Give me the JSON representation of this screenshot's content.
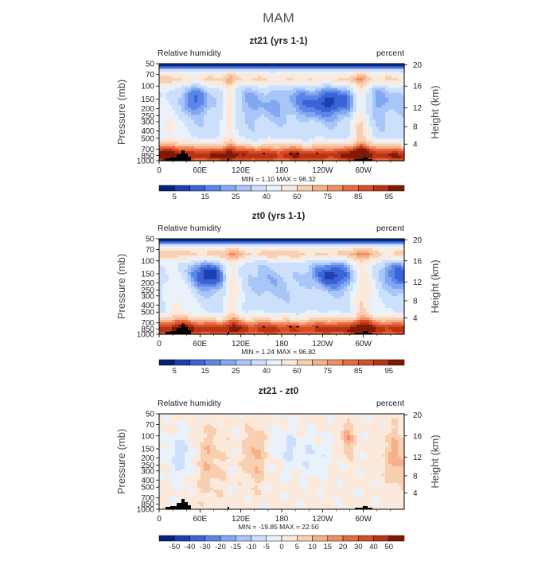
{
  "main_title": "MAM",
  "chart_data": [
    {
      "type": "heatmap",
      "title": "zt21 (yrs 1-1)",
      "variable": "Relative humidity",
      "units": "percent",
      "ylabel": "Pressure (mb)",
      "ylabel_right": "Height (km)",
      "x_ticks": [
        "0",
        "60E",
        "120E",
        "180",
        "120W",
        "60W"
      ],
      "y_ticks": [
        "1000",
        "850",
        "700",
        "500",
        "400",
        "300",
        "250",
        "200",
        "150",
        "100",
        "70",
        "50"
      ],
      "height_ticks": [
        "20",
        "16",
        "12",
        "8",
        "4"
      ],
      "stats": "MIN =     1.10   MAX =   98.32",
      "colorbar_labels": [
        "5",
        "15",
        "25",
        "40",
        "60",
        "75",
        "85",
        "95"
      ],
      "colors": [
        "#08207d",
        "#1d3fb0",
        "#3a63d6",
        "#5b86e8",
        "#82a8f2",
        "#a9c6f8",
        "#cde0fb",
        "#e9f1fb",
        "#fbe9dc",
        "#f9cfb2",
        "#f6b08a",
        "#f08e63",
        "#e76a41",
        "#d64e27",
        "#b93414",
        "#7f1b05"
      ]
    },
    {
      "type": "heatmap",
      "title": "zt0 (yrs 1-1)",
      "variable": "Relative humidity",
      "units": "percent",
      "ylabel": "Pressure (mb)",
      "ylabel_right": "Height (km)",
      "x_ticks": [
        "0",
        "60E",
        "120E",
        "180",
        "120W",
        "60W"
      ],
      "y_ticks": [
        "1000",
        "850",
        "700",
        "500",
        "400",
        "300",
        "250",
        "200",
        "150",
        "100",
        "70",
        "50"
      ],
      "height_ticks": [
        "20",
        "16",
        "12",
        "8",
        "4"
      ],
      "stats": "MIN =     1.24   MAX =   96.82",
      "colorbar_labels": [
        "5",
        "15",
        "25",
        "40",
        "60",
        "75",
        "85",
        "95"
      ],
      "colors": [
        "#08207d",
        "#1d3fb0",
        "#3a63d6",
        "#5b86e8",
        "#82a8f2",
        "#a9c6f8",
        "#cde0fb",
        "#e9f1fb",
        "#fbe9dc",
        "#f9cfb2",
        "#f6b08a",
        "#f08e63",
        "#e76a41",
        "#d64e27",
        "#b93414",
        "#7f1b05"
      ]
    },
    {
      "type": "heatmap",
      "title": "zt21 - zt0",
      "variable": "Relative humidity",
      "units": "percent",
      "ylabel": "Pressure (mb)",
      "ylabel_right": "Height (km)",
      "x_ticks": [
        "0",
        "60E",
        "120E",
        "180",
        "120W",
        "60W"
      ],
      "y_ticks": [
        "1000",
        "850",
        "700",
        "500",
        "400",
        "300",
        "250",
        "200",
        "150",
        "100",
        "70",
        "50"
      ],
      "height_ticks": [
        "20",
        "16",
        "12",
        "8",
        "4"
      ],
      "stats": "MIN =  -19.85   MAX =   22.50",
      "colorbar_labels": [
        "-50",
        "-40",
        "-30",
        "-20",
        "-15",
        "-10",
        "-5",
        "0",
        "5",
        "10",
        "15",
        "20",
        "30",
        "40",
        "50"
      ],
      "colors": [
        "#08207d",
        "#1d3fb0",
        "#3a63d6",
        "#5b86e8",
        "#82a8f2",
        "#a9c6f8",
        "#cde0fb",
        "#e9f1fb",
        "#fbe9dc",
        "#f9cfb2",
        "#f6b08a",
        "#f08e63",
        "#e76a41",
        "#d64e27",
        "#b93414",
        "#7f1b05"
      ]
    }
  ]
}
